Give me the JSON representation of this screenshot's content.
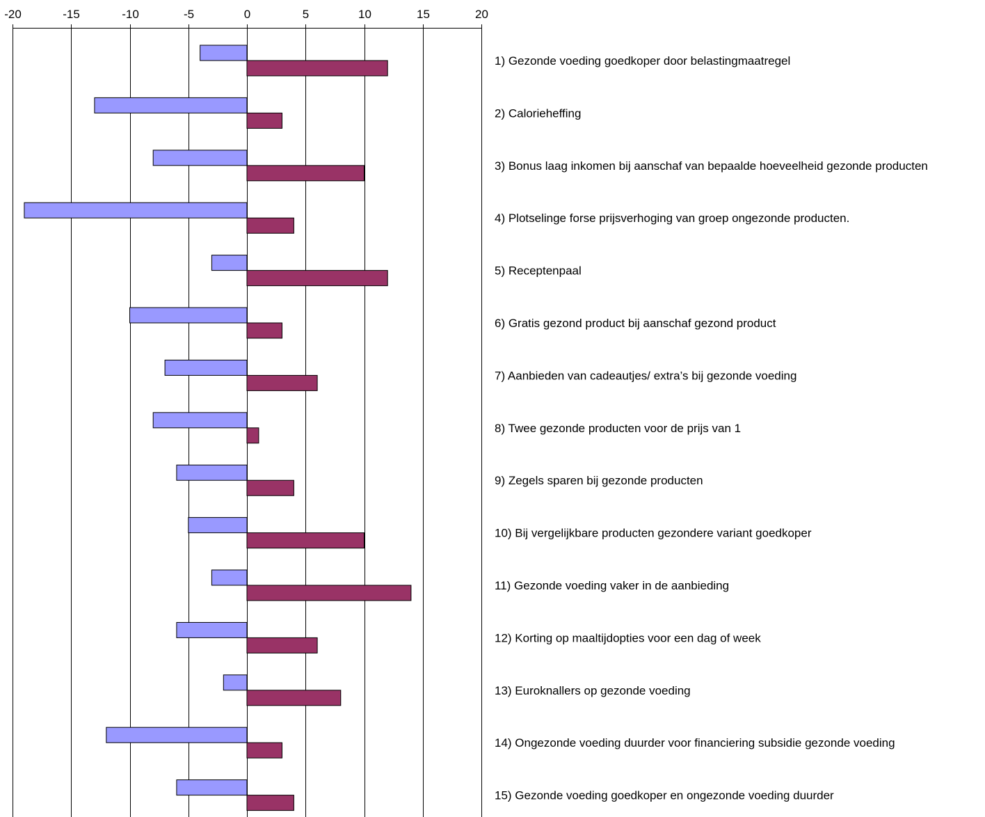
{
  "chart_data": {
    "type": "bar",
    "orientation": "horizontal",
    "xlim": [
      -20,
      20
    ],
    "x_ticks": [
      -20,
      -15,
      -10,
      -5,
      0,
      5,
      10,
      15,
      20
    ],
    "x_tick_labels": [
      "-20",
      "-15",
      "-10",
      "-5",
      "0",
      "5",
      "10",
      "15",
      "20"
    ],
    "x_axis_position": "top",
    "grid": true,
    "legend": "none",
    "categories": [
      "1) Gezonde voeding goedkoper door belastingmaatregel",
      "2) Calorieheffing",
      "3) Bonus laag inkomen bij aanschaf van bepaalde hoeveelheid gezonde producten",
      "4) Plotselinge forse prijsverhoging van groep ongezonde producten.",
      "5) Receptenpaal",
      "6) Gratis gezond product bij aanschaf gezond product",
      "7) Aanbieden van cadeautjes/ extra’s bij gezonde voeding",
      "8) Twee gezonde producten voor de prijs van 1",
      "9) Zegels sparen bij gezonde producten",
      "10) Bij vergelijkbare producten gezondere variant goedkoper",
      "11) Gezonde voeding vaker in de aanbieding",
      "12) Korting op maaltijdopties voor een dag of week",
      "13) Euroknallers op gezonde voeding",
      "14) Ongezonde voeding duurder voor financiering subsidie gezonde voeding",
      "15) Gezonde voeding goedkoper en ongezonde voeding duurder"
    ],
    "series": [
      {
        "color": "#9999ff",
        "values": [
          -4,
          -13,
          -8,
          -19,
          -3,
          -10,
          -7,
          -8,
          -6,
          -5,
          -3,
          -6,
          -2,
          -12,
          -6
        ]
      },
      {
        "color": "#993366",
        "values": [
          12,
          3,
          10,
          4,
          12,
          3,
          6,
          1,
          4,
          10,
          14,
          6,
          8,
          3,
          4
        ]
      }
    ]
  }
}
